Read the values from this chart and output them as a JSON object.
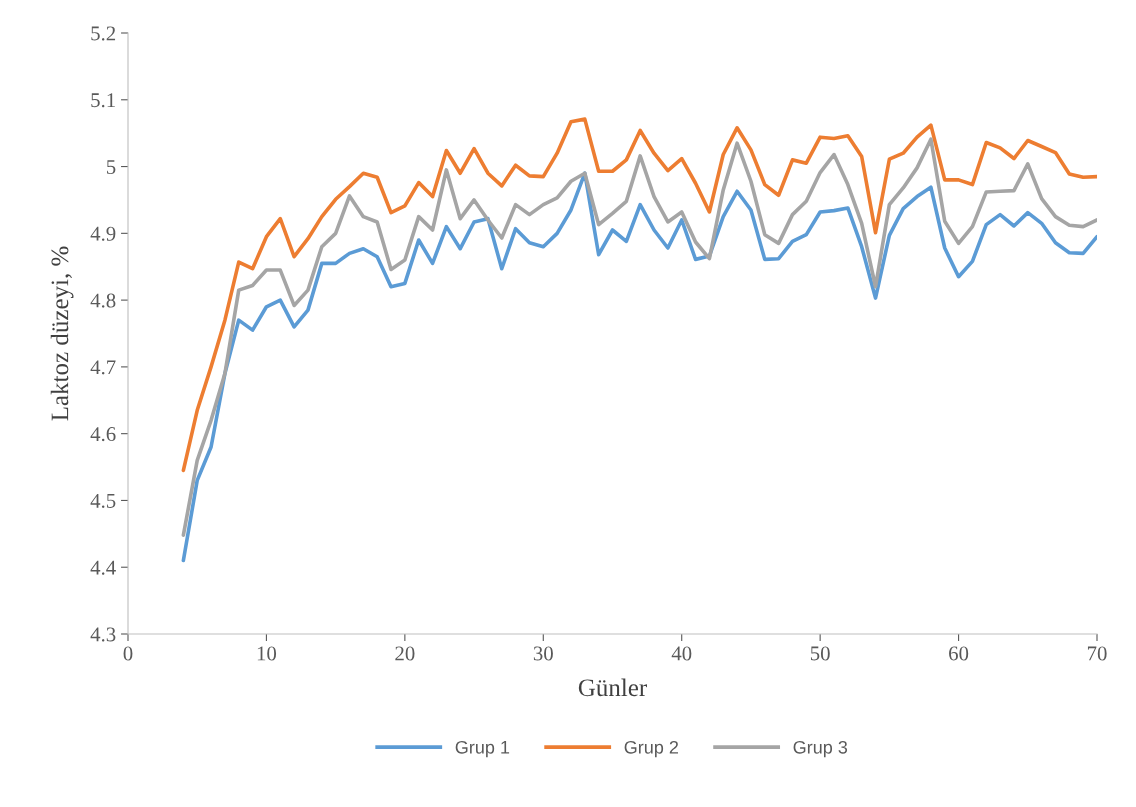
{
  "chart_data": {
    "type": "line",
    "xlabel": "Günler",
    "ylabel": "Laktoz düzeyi, %",
    "x": [
      4,
      5,
      6,
      7,
      8,
      9,
      10,
      11,
      12,
      13,
      14,
      15,
      16,
      17,
      18,
      19,
      20,
      21,
      22,
      23,
      24,
      25,
      26,
      27,
      28,
      29,
      30,
      31,
      32,
      33,
      34,
      35,
      36,
      37,
      38,
      39,
      40,
      41,
      42,
      43,
      44,
      45,
      46,
      47,
      48,
      49,
      50,
      51,
      52,
      53,
      54,
      55,
      56,
      57,
      58,
      59,
      60,
      61,
      62,
      63,
      64,
      65,
      66,
      67,
      68,
      69,
      70
    ],
    "xlim": [
      0,
      70
    ],
    "xticks": [
      0,
      10,
      20,
      30,
      40,
      50,
      60,
      70
    ],
    "ylim": [
      4.3,
      5.2
    ],
    "yticks": [
      4.3,
      4.4,
      4.5,
      4.6,
      4.7,
      4.8,
      4.9,
      {
        "value": 5.0,
        "label": "5"
      },
      5.1,
      5.2
    ],
    "grid": false,
    "legend": "bottom",
    "marker": "none",
    "line_style": "solid",
    "series": [
      {
        "name": "Grup 1",
        "color": "#5b9bd5",
        "values": [
          4.41,
          4.53,
          4.58,
          4.69,
          4.77,
          4.755,
          4.79,
          4.8,
          4.76,
          4.785,
          4.855,
          4.855,
          4.87,
          4.877,
          4.865,
          4.82,
          4.825,
          4.89,
          4.855,
          4.91,
          4.877,
          4.917,
          4.922,
          4.847,
          4.907,
          4.886,
          4.88,
          4.9,
          4.935,
          4.99,
          4.868,
          4.905,
          4.888,
          4.943,
          4.905,
          4.878,
          4.92,
          4.861,
          4.866,
          4.925,
          4.963,
          4.935,
          4.861,
          4.862,
          4.888,
          4.898,
          4.932,
          4.934,
          4.938,
          4.88,
          4.803,
          4.897,
          4.937,
          4.955,
          4.969,
          4.878,
          4.835,
          4.858,
          4.913,
          4.928,
          4.911,
          4.931,
          4.915,
          4.886,
          4.871,
          4.87,
          4.895
        ]
      },
      {
        "name": "Grup 2",
        "color": "#ed7d31",
        "values": [
          4.545,
          4.635,
          4.7,
          4.77,
          4.857,
          4.847,
          4.895,
          4.922,
          4.865,
          4.892,
          4.925,
          4.951,
          4.97,
          4.99,
          4.984,
          4.931,
          4.941,
          4.976,
          4.955,
          5.024,
          4.99,
          5.027,
          4.99,
          4.971,
          5.002,
          4.986,
          4.985,
          5.02,
          5.067,
          5.071,
          4.993,
          4.993,
          5.01,
          5.054,
          5.02,
          4.994,
          5.012,
          4.975,
          4.932,
          5.018,
          5.058,
          5.025,
          4.973,
          4.957,
          5.01,
          5.005,
          5.044,
          5.042,
          5.046,
          5.015,
          4.901,
          5.011,
          5.02,
          5.044,
          5.062,
          4.98,
          4.98,
          4.973,
          5.036,
          5.028,
          5.012,
          5.039,
          5.03,
          5.021,
          4.989,
          4.984,
          4.985
        ]
      },
      {
        "name": "Grup 3",
        "color": "#a5a5a5",
        "values": [
          4.448,
          4.56,
          4.62,
          4.69,
          4.815,
          4.822,
          4.845,
          4.845,
          4.792,
          4.815,
          4.88,
          4.9,
          4.956,
          4.925,
          4.917,
          4.846,
          4.86,
          4.925,
          4.905,
          4.995,
          4.922,
          4.95,
          4.92,
          4.893,
          4.943,
          4.928,
          4.943,
          4.953,
          4.978,
          4.99,
          4.913,
          4.93,
          4.948,
          5.016,
          4.955,
          4.917,
          4.932,
          4.887,
          4.862,
          4.965,
          5.035,
          4.978,
          4.898,
          4.885,
          4.928,
          4.948,
          4.991,
          5.018,
          4.973,
          4.915,
          4.82,
          4.943,
          4.968,
          4.998,
          5.041,
          4.918,
          4.885,
          4.91,
          4.962,
          4.963,
          4.964,
          5.004,
          4.952,
          4.925,
          4.912,
          4.91,
          4.92
        ]
      }
    ]
  }
}
